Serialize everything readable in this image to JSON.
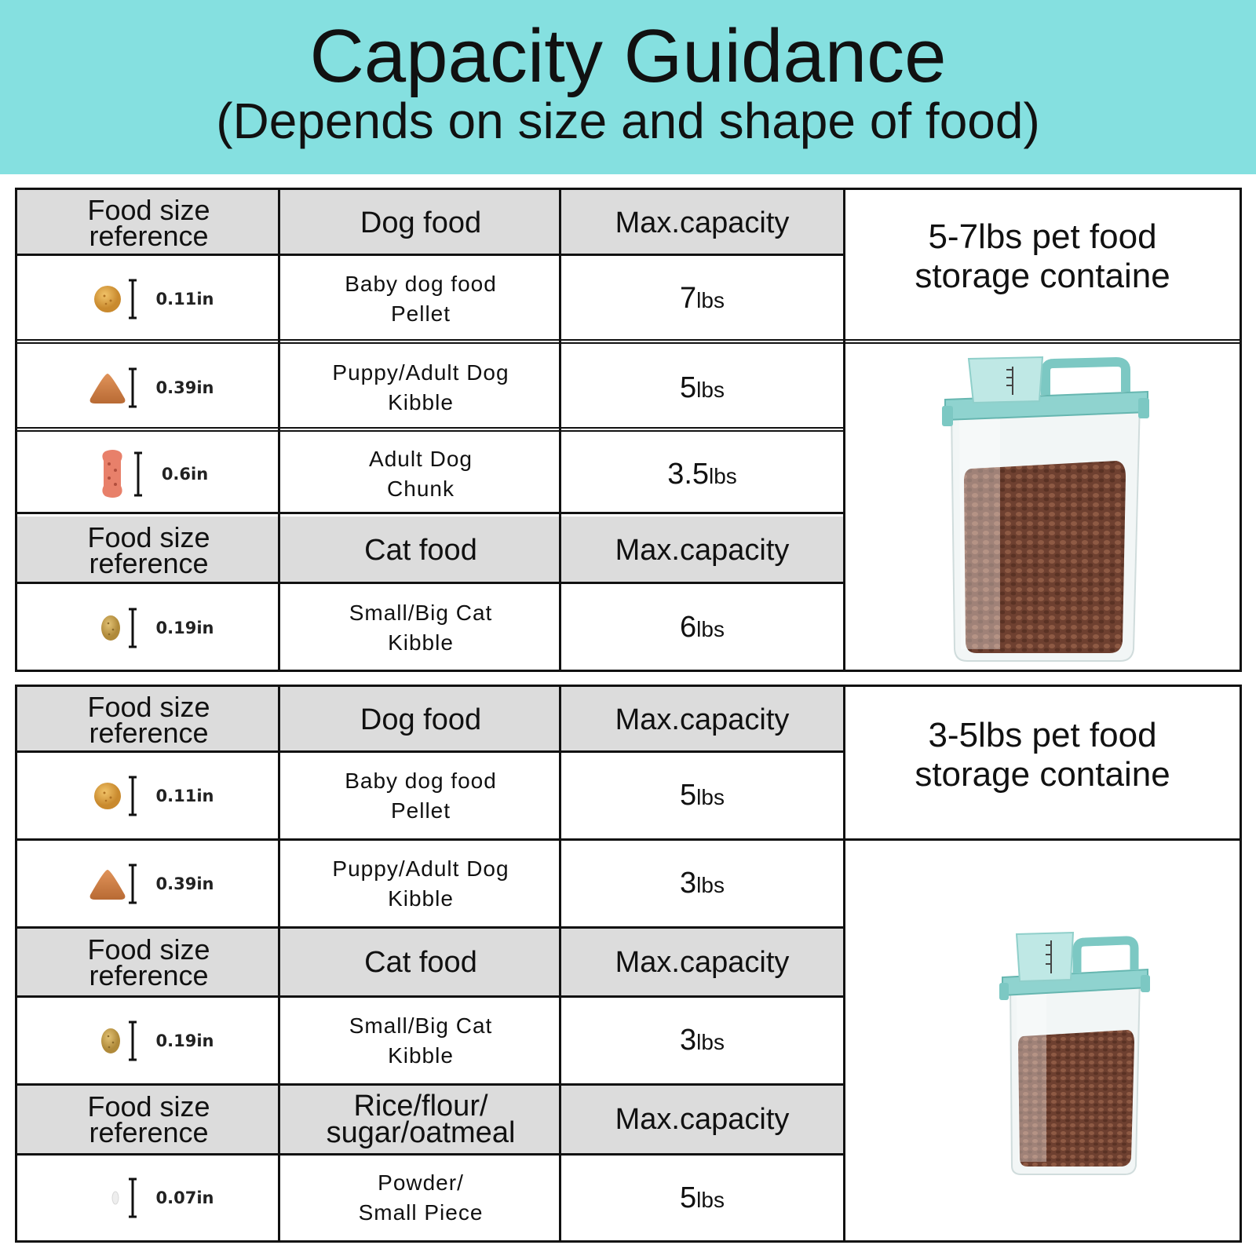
{
  "header": {
    "title": "Capacity Guidance",
    "subtitle": "(Depends on size and shape of food)"
  },
  "colors": {
    "banner": "#85e0e0",
    "header_cell": "#dcdcdc"
  },
  "table1": {
    "container_title_line1": "5-7lbs pet food",
    "container_title_line2": "storage containe",
    "headers": {
      "ref_line1": "Food size",
      "ref_line2": "reference",
      "food": "Dog food",
      "capacity": "Max.capacity"
    },
    "rows": [
      {
        "icon": "round-pellet-icon",
        "size": "0.11in",
        "name_line1": "Baby dog food",
        "name_line2": "Pellet",
        "amount": "7",
        "unit": "lbs"
      },
      {
        "icon": "triangle-kibble-icon",
        "size": "0.39in",
        "name_line1": "Puppy/Adult Dog",
        "name_line2": "Kibble",
        "amount": "5",
        "unit": "lbs"
      },
      {
        "icon": "bone-chunk-icon",
        "size": "0.6in",
        "name_line1": "Adult Dog",
        "name_line2": "Chunk",
        "amount": "3.5",
        "unit": "lbs"
      }
    ],
    "cat_headers": {
      "ref_line1": "Food size",
      "ref_line2": "reference",
      "food": "Cat food",
      "capacity": "Max.capacity"
    },
    "cat_rows": [
      {
        "icon": "cat-kibble-icon",
        "size": "0.19in",
        "name_line1": "Small/Big Cat",
        "name_line2": "Kibble",
        "amount": "6",
        "unit": "lbs"
      }
    ]
  },
  "table2": {
    "container_title_line1": "3-5lbs pet food",
    "container_title_line2": "storage containe",
    "headers": {
      "ref_line1": "Food size",
      "ref_line2": "reference",
      "food": "Dog food",
      "capacity": "Max.capacity"
    },
    "rows": [
      {
        "icon": "round-pellet-icon",
        "size": "0.11in",
        "name_line1": "Baby dog food",
        "name_line2": "Pellet",
        "amount": "5",
        "unit": "lbs"
      },
      {
        "icon": "triangle-kibble-icon",
        "size": "0.39in",
        "name_line1": "Puppy/Adult Dog",
        "name_line2": "Kibble",
        "amount": "3",
        "unit": "lbs"
      }
    ],
    "cat_headers": {
      "ref_line1": "Food size",
      "ref_line2": "reference",
      "food": "Cat food",
      "capacity": "Max.capacity"
    },
    "cat_rows": [
      {
        "icon": "cat-kibble-icon",
        "size": "0.19in",
        "name_line1": "Small/Big Cat",
        "name_line2": "Kibble",
        "amount": "3",
        "unit": "lbs"
      }
    ],
    "grain_headers": {
      "ref_line1": "Food size",
      "ref_line2": "reference",
      "food_line1": "Rice/flour/",
      "food_line2": "sugar/oatmeal",
      "capacity": "Max.capacity"
    },
    "grain_rows": [
      {
        "icon": "powder-grain-icon",
        "size": "0.07in",
        "name_line1": "Powder/",
        "name_line2": "Small Piece",
        "amount": "5",
        "unit": "lbs"
      }
    ]
  }
}
